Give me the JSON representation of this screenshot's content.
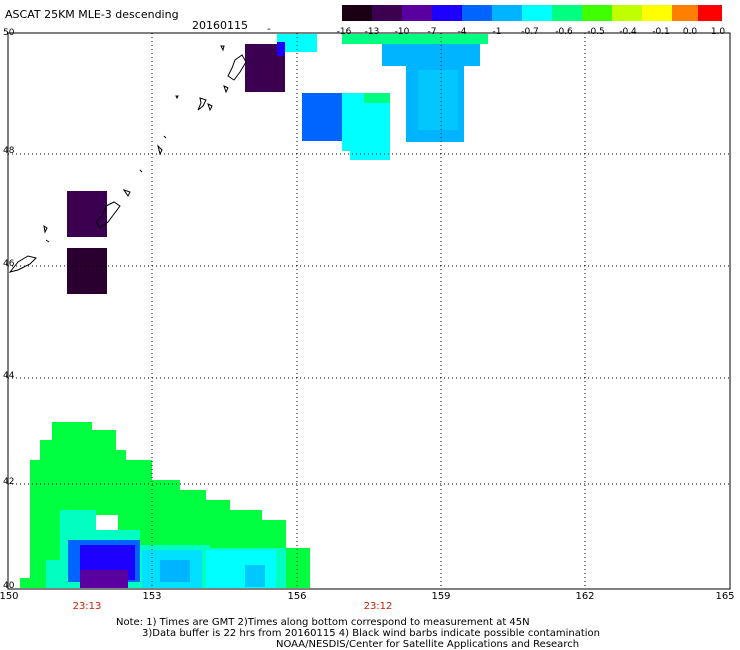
{
  "header": {
    "title": "ASCAT 25KM MLE-3 descending",
    "date": "20160115",
    "dash": "-"
  },
  "colorbar": {
    "labels": [
      "-16",
      "-13",
      "-10",
      "-7",
      "-4",
      "-1",
      "-0.7",
      "-0.6",
      "-0.5",
      "-0.4",
      "-0.1",
      "0.0",
      "1.0"
    ],
    "colors": [
      "#1a0010",
      "#3c0050",
      "#5a00a0",
      "#1e00ff",
      "#0064ff",
      "#00b4ff",
      "#00ffff",
      "#00ff80",
      "#40ff00",
      "#c0ff00",
      "#ffff00",
      "#ff8000",
      "#ff0000"
    ]
  },
  "axes": {
    "lon_labels": [
      "150",
      "153",
      "156",
      "159",
      "162",
      "165"
    ],
    "lat_labels": [
      "50",
      "48",
      "46",
      "44",
      "42",
      "40"
    ],
    "lon_range": [
      150,
      165
    ],
    "lat_range": [
      40,
      50
    ],
    "grid": true
  },
  "pass_times": [
    "23:13",
    "23:12"
  ],
  "notes": [
    "Note: 1) Times are GMT 2)Times along bottom correspond to measurement at 45N",
    "3)Data buffer is 22 hrs from 20160115 4) Black wind barbs indicate possible contamination",
    "NOAA/NESDIS/Center for Satellite Applications and Research"
  ]
}
